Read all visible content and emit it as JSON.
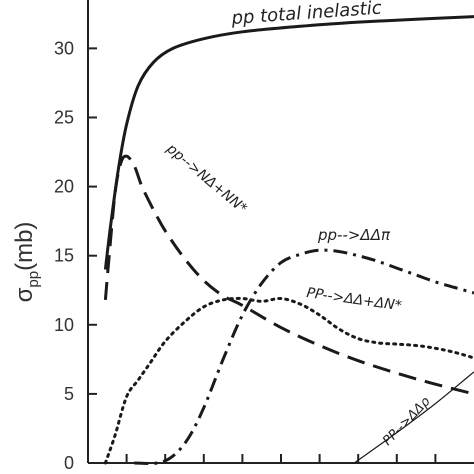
{
  "chart_data": {
    "type": "line",
    "xlabel": "",
    "ylabel_main": "σ",
    "ylabel_sub": "pp",
    "ylabel_unit": "(mb)",
    "ylim": [
      0,
      33.5
    ],
    "xlim": [
      0,
      10
    ],
    "yticks": [
      "0",
      "5",
      "10",
      "15",
      "20",
      "25",
      "30"
    ],
    "ytick_values": [
      0,
      5,
      10,
      15,
      20,
      25,
      30
    ],
    "xtick_values": [
      1,
      2,
      3,
      4,
      5,
      6,
      7,
      8,
      9
    ],
    "grid": false,
    "series": [
      {
        "name": "pp total inelastic",
        "style": "solid",
        "x": [
          0.45,
          0.6,
          0.8,
          1.0,
          1.3,
          1.7,
          2.2,
          3.0,
          4.0,
          5.5,
          7.0,
          8.5,
          10.0
        ],
        "y": [
          14.0,
          17.5,
          21.5,
          24.5,
          27.3,
          29.0,
          30.0,
          30.7,
          31.2,
          31.6,
          31.9,
          32.1,
          32.3
        ]
      },
      {
        "name": "pp-->NΔ+NN*",
        "style": "dash",
        "x": [
          0.45,
          0.55,
          0.7,
          0.85,
          1.0,
          1.2,
          1.4,
          1.7,
          2.0,
          2.5,
          3.0,
          3.5,
          4.0,
          5.0,
          6.0,
          7.0,
          8.0,
          9.0,
          10.0
        ],
        "y": [
          11.8,
          15.0,
          19.5,
          21.7,
          22.2,
          21.5,
          20.0,
          18.3,
          16.8,
          14.8,
          13.2,
          12.1,
          11.4,
          9.8,
          8.5,
          7.4,
          6.5,
          5.7,
          5.0
        ]
      },
      {
        "name": "pp-->ΔΔπ",
        "style": "dashdot",
        "x": [
          1.2,
          1.8,
          2.2,
          2.6,
          3.0,
          3.5,
          4.0,
          4.5,
          5.0,
          5.5,
          6.0,
          6.5,
          7.0,
          7.5,
          8.0,
          8.5,
          9.0,
          9.5,
          10.0
        ],
        "y": [
          0.0,
          0.0,
          0.5,
          1.8,
          4.0,
          7.5,
          10.7,
          13.0,
          14.5,
          15.1,
          15.4,
          15.3,
          15.0,
          14.6,
          14.1,
          13.6,
          13.1,
          12.7,
          12.3
        ]
      },
      {
        "name": "PP-->ΔΔ+ΔN*",
        "style": "dot",
        "x": [
          0.45,
          0.7,
          1.0,
          1.3,
          1.6,
          2.0,
          2.5,
          3.0,
          3.5,
          4.0,
          4.5,
          5.0,
          5.5,
          6.0,
          6.5,
          7.0,
          7.5,
          8.0,
          8.5,
          9.0,
          9.5,
          10.0
        ],
        "y": [
          0.0,
          2.0,
          4.8,
          6.0,
          7.2,
          8.8,
          10.2,
          11.3,
          11.8,
          11.9,
          11.7,
          11.9,
          11.5,
          10.7,
          9.7,
          9.0,
          8.7,
          8.6,
          8.5,
          8.3,
          8.0,
          7.6
        ]
      },
      {
        "name": "PP-->ΔΔρ",
        "style": "thin",
        "x": [
          6.9,
          8.0,
          9.0,
          10.0
        ],
        "y": [
          0.0,
          2.2,
          4.3,
          6.6
        ]
      }
    ],
    "annotations": [
      {
        "text": "pp total inelastic",
        "series": 0
      },
      {
        "text": "pp-->NΔ+NN*",
        "series": 1
      },
      {
        "text": "pp-->ΔΔπ",
        "series": 2
      },
      {
        "text": "PP-->ΔΔ+ΔN*",
        "series": 3
      },
      {
        "text": "PP-->ΔΔρ",
        "series": 4
      }
    ]
  }
}
